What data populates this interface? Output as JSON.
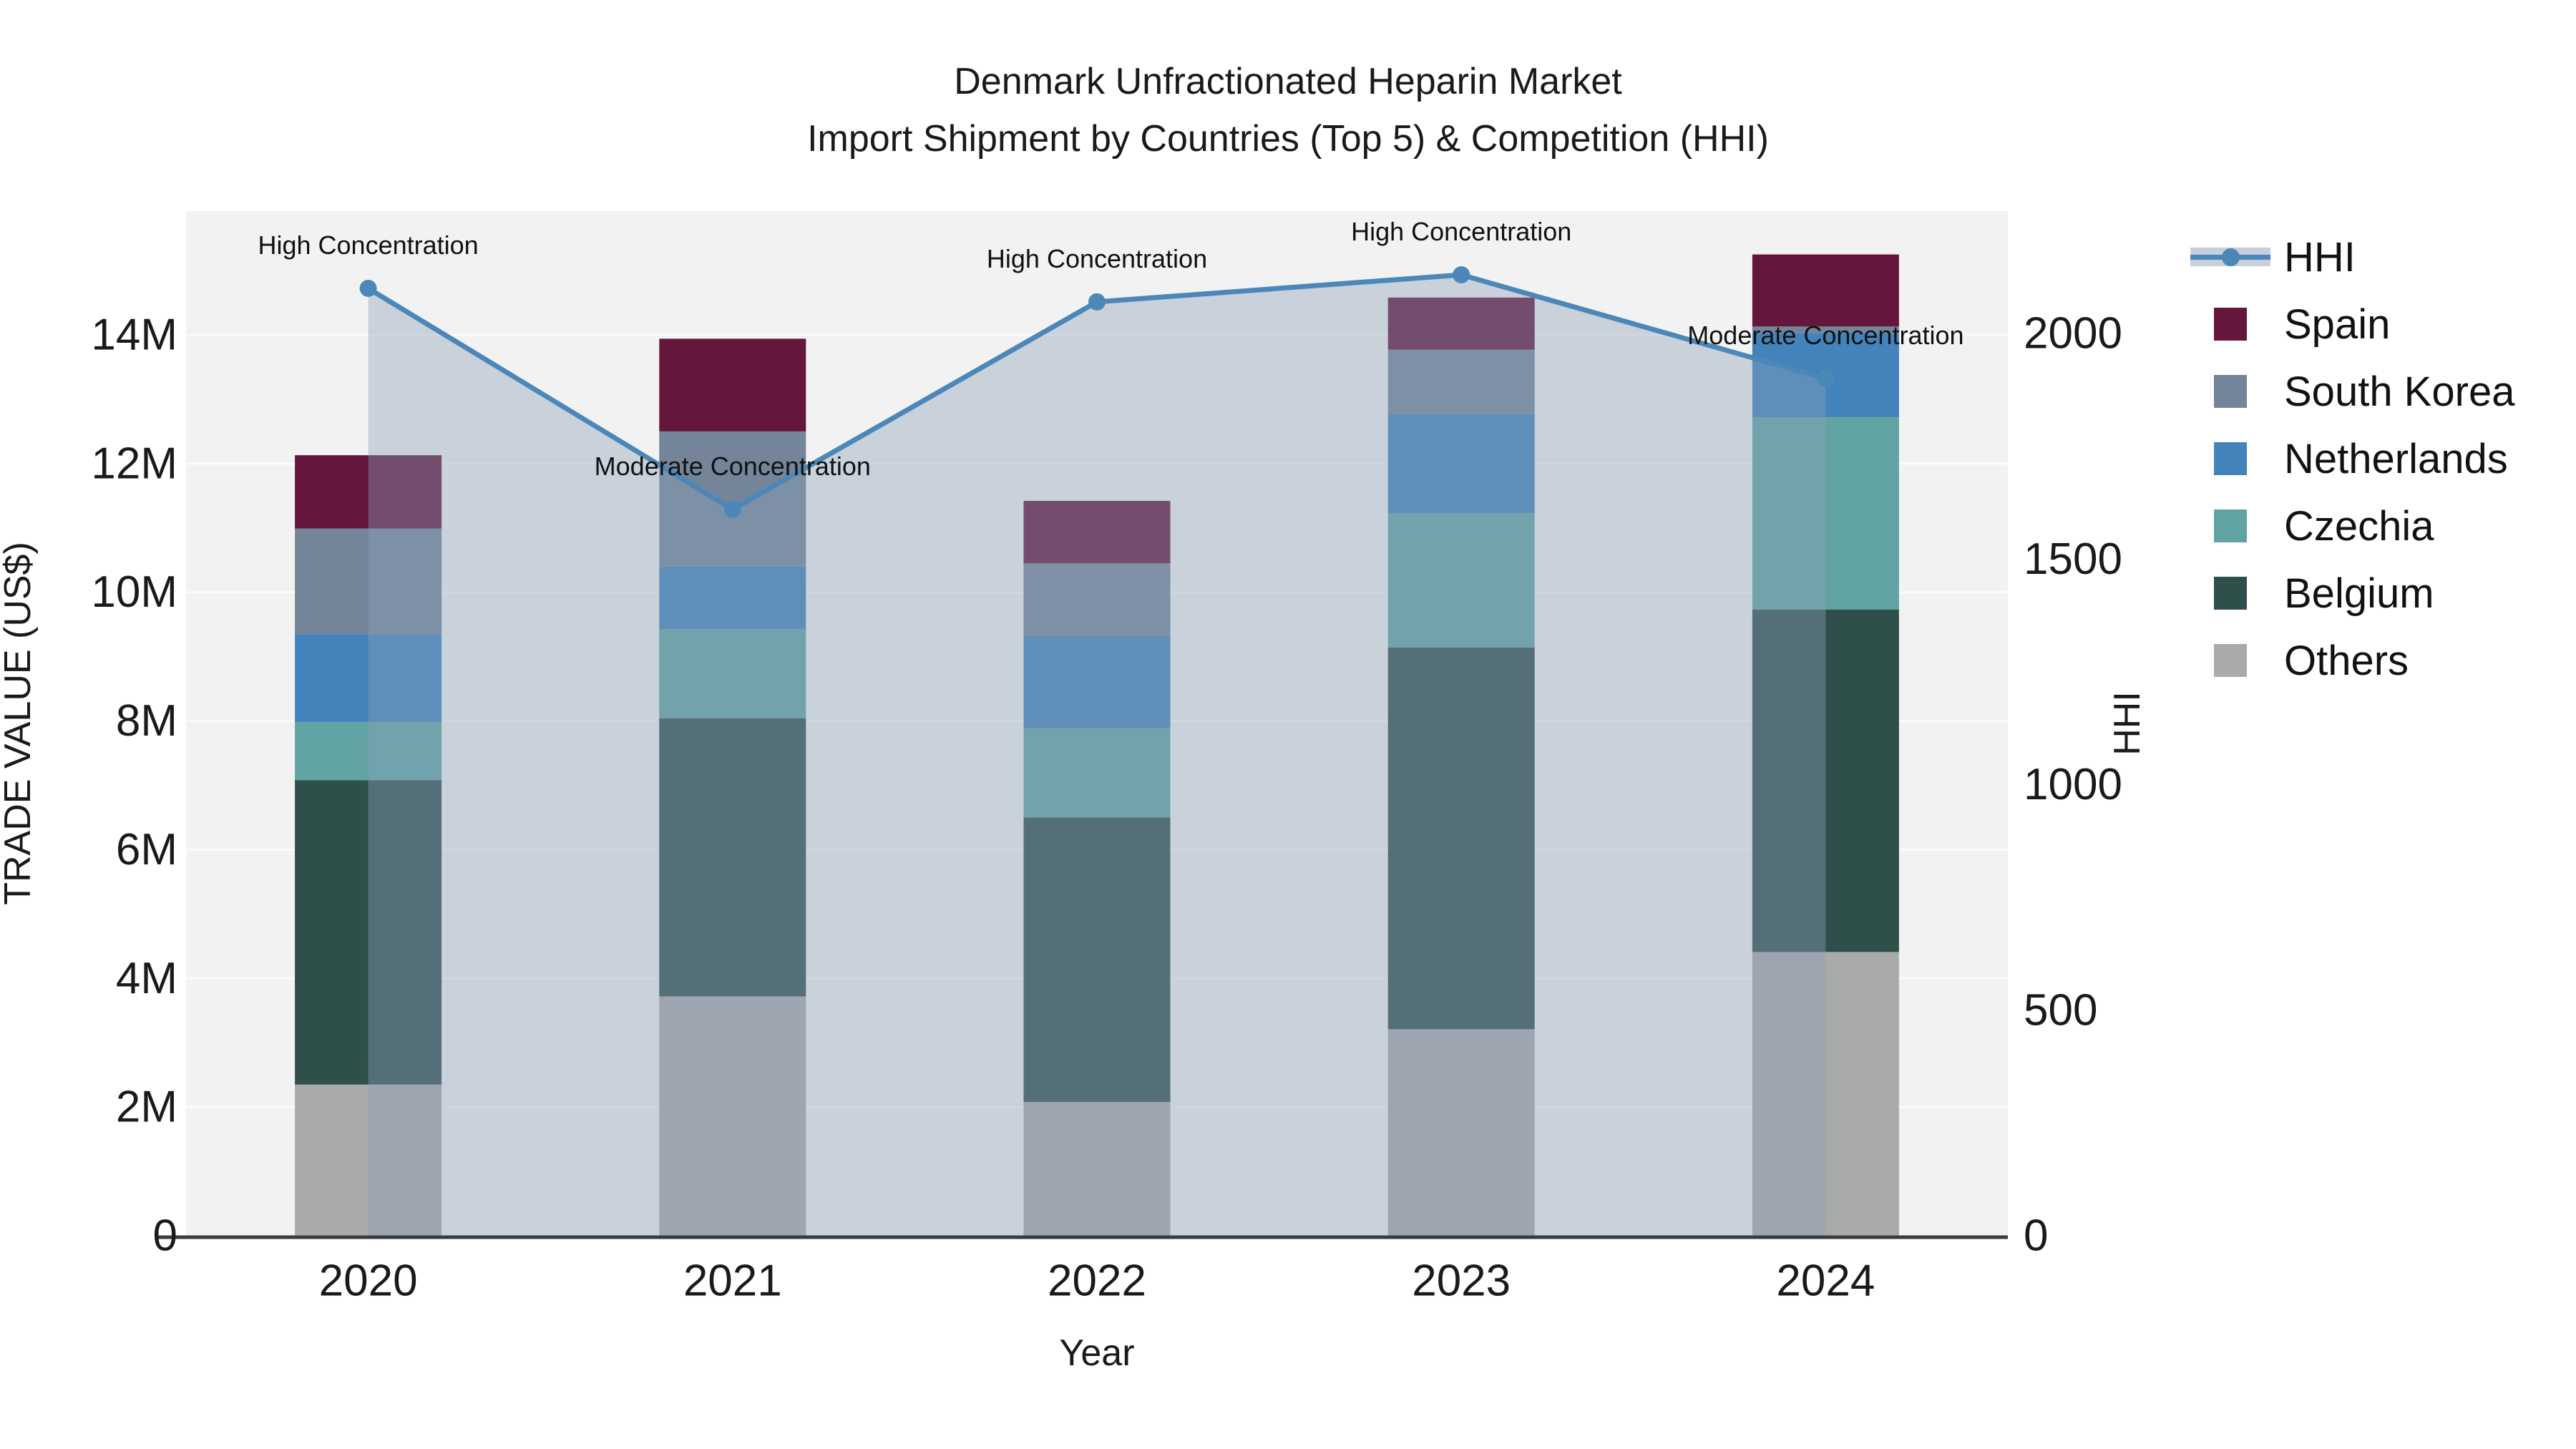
{
  "title": {
    "line1": "Denmark Unfractionated Heparin Market",
    "line2": "Import Shipment by Countries (Top 5) & Competition (HHI)"
  },
  "colors": {
    "spain": "#64163c",
    "south_korea": "#74859a",
    "netherlands": "#4383bb",
    "czechia": "#61a3a3",
    "belgium": "#2f4f4b",
    "others": "#a9abaa",
    "hhi_line": "#4c87ba",
    "hhi_area_fill": "rgba(140,160,185,0.40)",
    "plot_bg": "#f2f2f2",
    "gridline": "#fbfbfb",
    "axis_line": "#3b3b3b",
    "text": "#1a1a1a"
  },
  "legend": {
    "items": [
      {
        "label": "HHI",
        "marker": "line-band",
        "color": "#4c87ba"
      },
      {
        "label": "Spain",
        "marker": "square",
        "color": "#64163c"
      },
      {
        "label": "South Korea",
        "marker": "square",
        "color": "#74859a"
      },
      {
        "label": "Netherlands",
        "marker": "square",
        "color": "#4383bb"
      },
      {
        "label": "Czechia",
        "marker": "square",
        "color": "#61a3a3"
      },
      {
        "label": "Belgium",
        "marker": "square",
        "color": "#2f4f4b"
      },
      {
        "label": "Others",
        "marker": "square",
        "color": "#a9abaa"
      }
    ]
  },
  "chart_data": {
    "type": "bar",
    "subtype": "stacked-bars-with-line-area-overlay",
    "title": "Denmark Unfractionated Heparin Market — Import Shipment by Countries (Top 5) & Competition (HHI)",
    "categories": [
      "2020",
      "2021",
      "2022",
      "2023",
      "2024"
    ],
    "value_unit": "millions US$",
    "series": [
      {
        "name": "Others",
        "color": "#a9abaa",
        "values": [
          2.35,
          3.72,
          2.08,
          3.21,
          4.41
        ]
      },
      {
        "name": "Belgium",
        "color": "#2f4f4b",
        "values": [
          4.73,
          4.32,
          4.42,
          5.93,
          5.32
        ]
      },
      {
        "name": "Czechia",
        "color": "#61a3a3",
        "values": [
          0.9,
          1.39,
          1.39,
          2.09,
          2.99
        ]
      },
      {
        "name": "Netherlands",
        "color": "#4383bb",
        "values": [
          1.37,
          0.97,
          1.43,
          1.54,
          1.31
        ]
      },
      {
        "name": "South Korea",
        "color": "#74859a",
        "values": [
          1.64,
          2.1,
          1.13,
          1.0,
          0.1
        ]
      },
      {
        "name": "Spain",
        "color": "#64163c",
        "values": [
          1.14,
          1.44,
          0.97,
          0.81,
          1.12
        ]
      }
    ],
    "line_series": {
      "name": "HHI",
      "color": "#4c87ba",
      "values": [
        2100,
        1610,
        2070,
        2130,
        1900
      ],
      "area_fill": true
    },
    "annotations": [
      {
        "category": "2020",
        "text": "High Concentration"
      },
      {
        "category": "2021",
        "text": "Moderate Concentration"
      },
      {
        "category": "2022",
        "text": "High Concentration"
      },
      {
        "category": "2023",
        "text": "High Concentration"
      },
      {
        "category": "2024",
        "text": "Moderate Concentration"
      }
    ],
    "xlabel": "Year",
    "ylabel_left": "TRADE VALUE (US$)",
    "ylabel_right": "HHI",
    "yticks_left_labels": [
      "0",
      "2M",
      "4M",
      "6M",
      "8M",
      "10M",
      "12M",
      "14M"
    ],
    "yticks_left_values": [
      0,
      2,
      4,
      6,
      8,
      10,
      12,
      14
    ],
    "yticks_right_values": [
      0,
      500,
      1000,
      1500,
      2000
    ],
    "ylim_left": [
      0,
      16
    ],
    "ylim_right": [
      0,
      2270
    ],
    "grid": true,
    "legend_position": "right"
  }
}
